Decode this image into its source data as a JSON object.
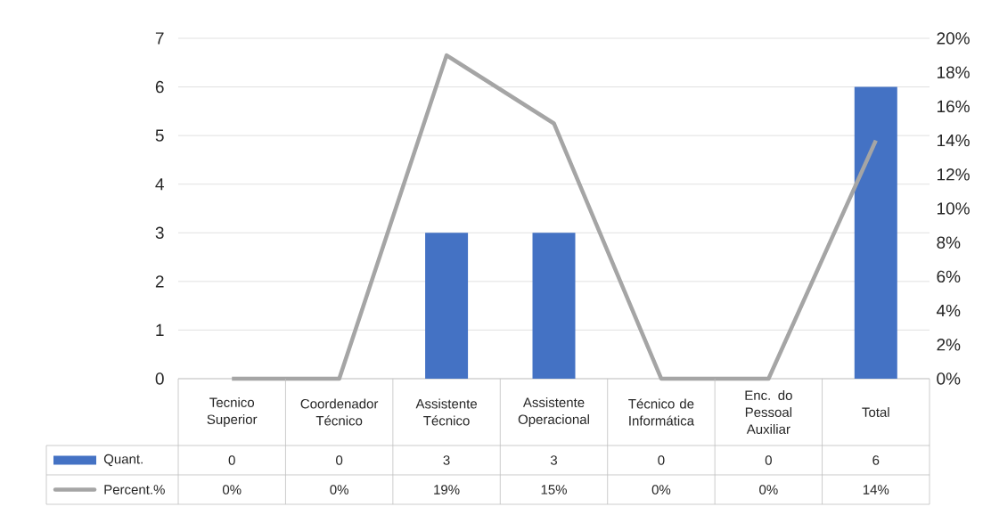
{
  "chart_data": {
    "type": "bar",
    "categories": [
      "Tecnico Superior",
      "Coordenador Técnico",
      "Assistente Técnico",
      "Assistente Operacional",
      "Técnico de Informática",
      "Enc. do Pessoal Auxiliar",
      "Total"
    ],
    "series": [
      {
        "name": "Quant.",
        "color": "#4472c4",
        "values": [
          0,
          0,
          3,
          3,
          0,
          0,
          6
        ],
        "value_labels": [
          "0",
          "0",
          "3",
          "3",
          "0",
          "0",
          "6"
        ]
      },
      {
        "name": "Percent.%",
        "type": "line",
        "axis": "y2",
        "color": "#a5a5a5",
        "values": [
          0,
          0,
          19,
          15,
          0,
          0,
          14
        ],
        "value_labels": [
          "0%",
          "0%",
          "19%",
          "15%",
          "0%",
          "0%",
          "14%"
        ]
      }
    ],
    "ylim": [
      0,
      7
    ],
    "yticks": [
      0,
      1,
      2,
      3,
      4,
      5,
      6,
      7
    ],
    "y2lim": [
      0,
      20
    ],
    "y2ticks": [
      {
        "value": 0,
        "label": "0%"
      },
      {
        "value": 2,
        "label": "2%"
      },
      {
        "value": 4,
        "label": "4%"
      },
      {
        "value": 6,
        "label": "6%"
      },
      {
        "value": 8,
        "label": "8%"
      },
      {
        "value": 10,
        "label": "10%"
      },
      {
        "value": 12,
        "label": "12%"
      },
      {
        "value": 14,
        "label": "14%"
      },
      {
        "value": 16,
        "label": "16%"
      },
      {
        "value": 18,
        "label": "18%"
      },
      {
        "value": 20,
        "label": "20%"
      }
    ],
    "grid": "y",
    "legend": "bottom",
    "marker": "none",
    "line_style": "solid"
  }
}
